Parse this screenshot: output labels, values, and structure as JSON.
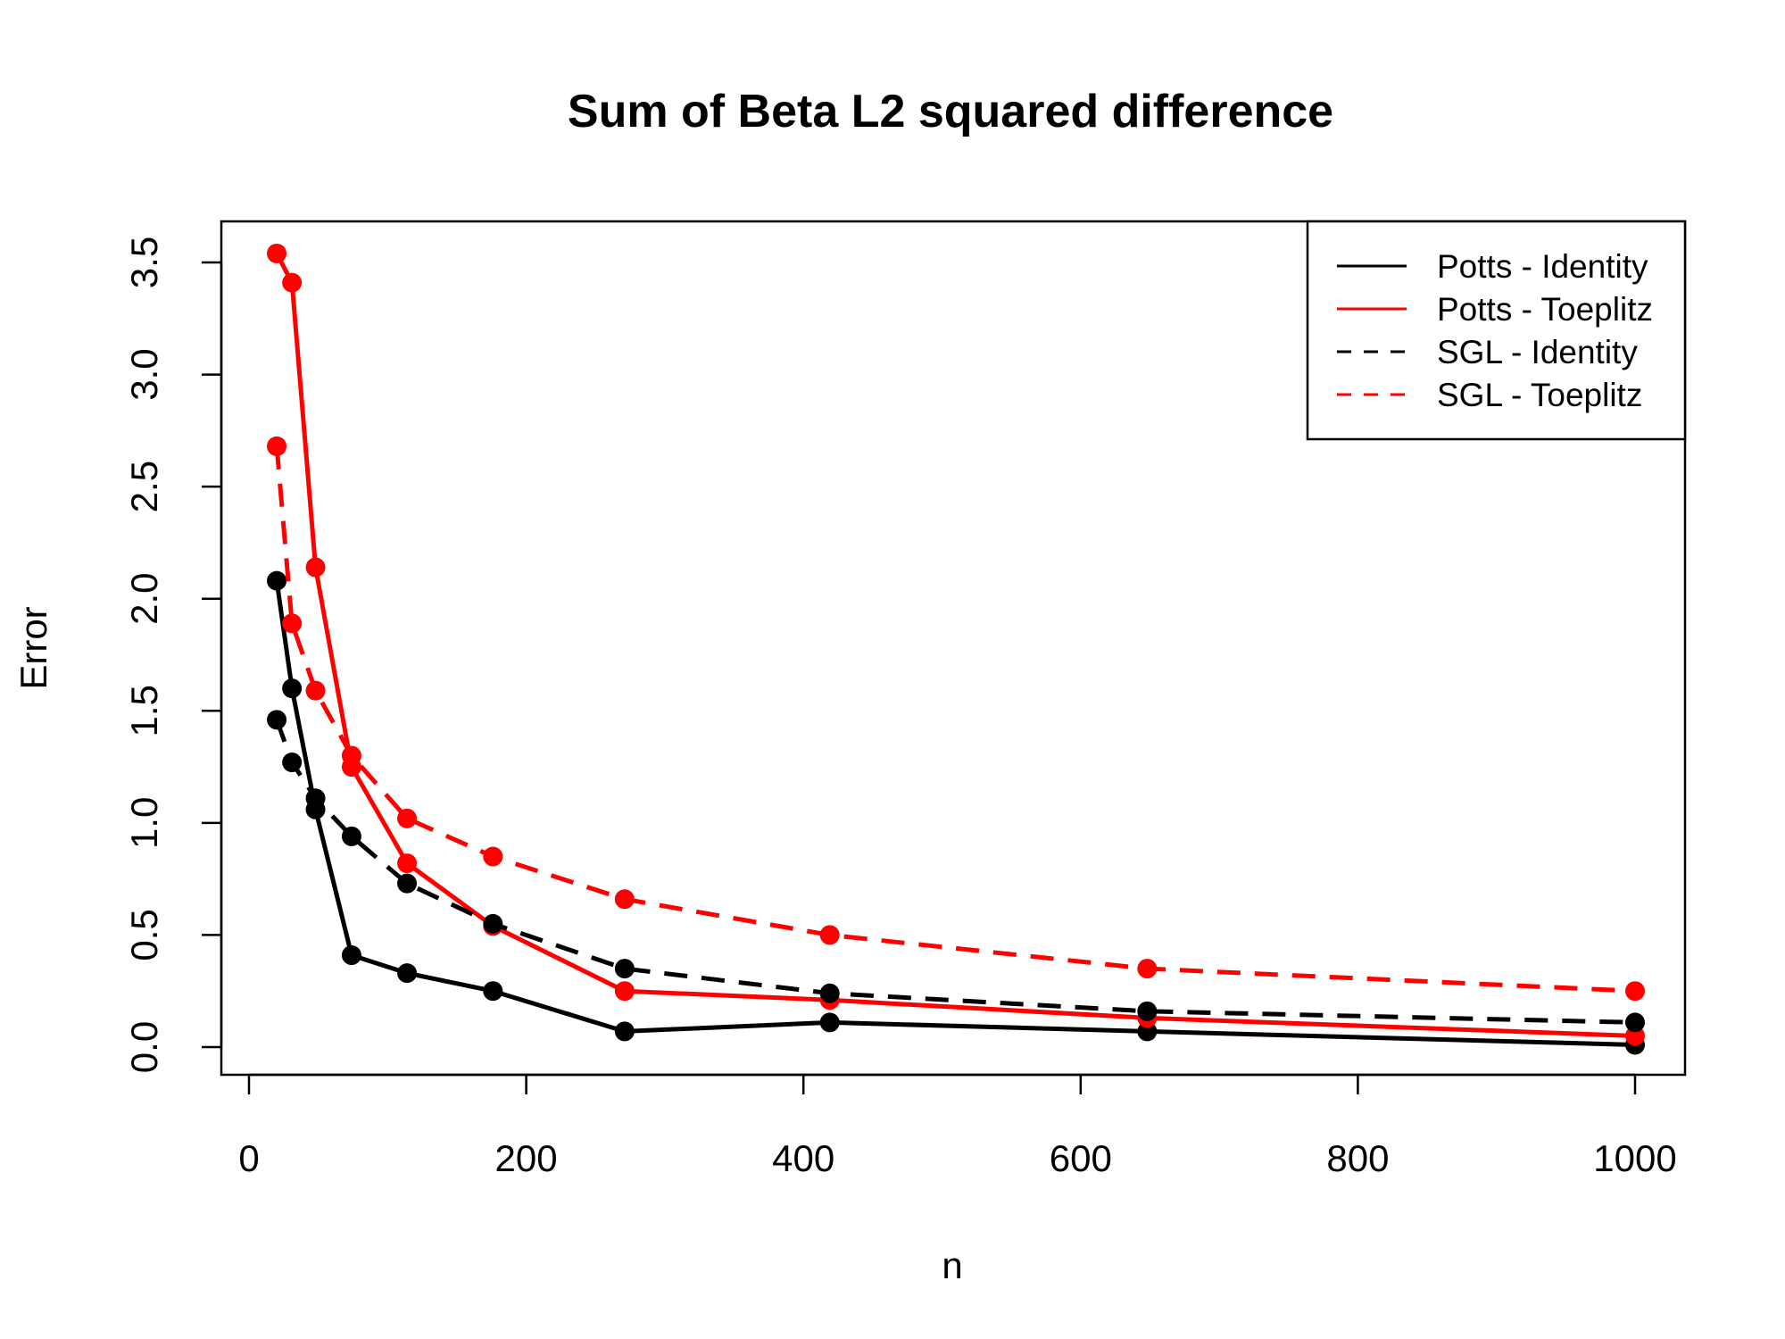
{
  "chart_data": {
    "type": "line",
    "title": "Sum of Beta L2 squared difference",
    "xlabel": "n",
    "ylabel": "Error",
    "xlim": [
      0,
      1000
    ],
    "ylim": [
      0.0,
      3.5
    ],
    "x_ticks": [
      "0",
      "200",
      "400",
      "600",
      "800",
      "1000"
    ],
    "y_ticks": [
      "0.0",
      "0.5",
      "1.0",
      "1.5",
      "2.0",
      "2.5",
      "3.0",
      "3.5"
    ],
    "grid": false,
    "legend_position": "top-right",
    "x": [
      20,
      31,
      48,
      74,
      114,
      176,
      271,
      419,
      648,
      1000
    ],
    "series": [
      {
        "name": "Potts - Identity",
        "color": "#000000",
        "dashed": false,
        "values": [
          2.08,
          1.6,
          1.06,
          0.41,
          0.33,
          0.25,
          0.07,
          0.11,
          0.07,
          0.01
        ]
      },
      {
        "name": "Potts - Toeplitz",
        "color": "#ff0000",
        "dashed": false,
        "values": [
          3.54,
          3.41,
          2.14,
          1.25,
          0.82,
          0.54,
          0.25,
          0.21,
          0.13,
          0.05
        ]
      },
      {
        "name": "SGL - Identity",
        "color": "#000000",
        "dashed": true,
        "values": [
          1.46,
          1.27,
          1.11,
          0.94,
          0.73,
          0.55,
          0.35,
          0.24,
          0.16,
          0.11
        ]
      },
      {
        "name": "SGL - Toeplitz",
        "color": "#ff0000",
        "dashed": true,
        "values": [
          2.68,
          1.89,
          1.59,
          1.3,
          1.02,
          0.85,
          0.66,
          0.5,
          0.35,
          0.25
        ]
      }
    ]
  }
}
